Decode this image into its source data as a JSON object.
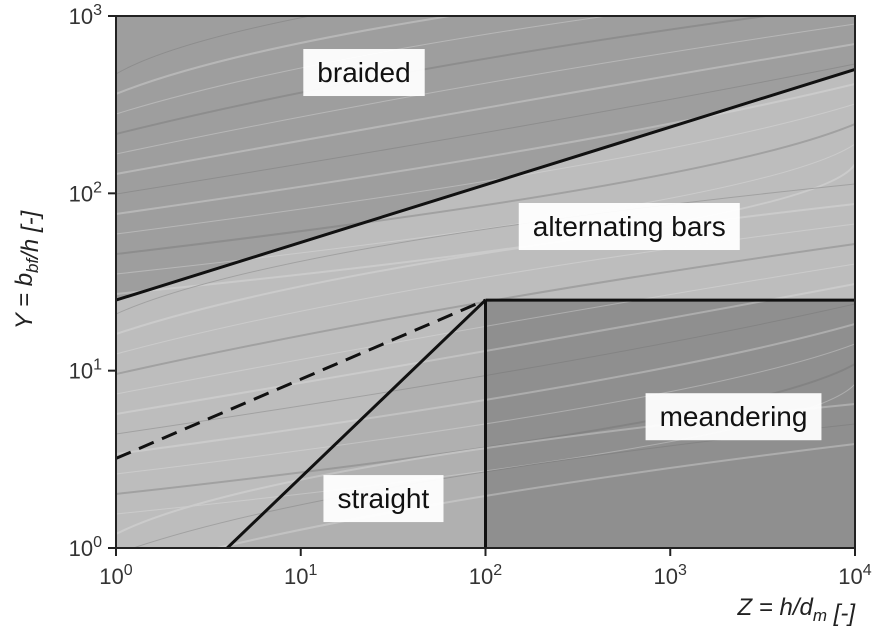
{
  "chart_data": {
    "type": "scatter",
    "title": "",
    "xlabel": "Z = h/d_m [-]",
    "ylabel": "Y = b_bf/h [-]",
    "xscale": "log",
    "yscale": "log",
    "xlim": [
      1,
      10000
    ],
    "ylim": [
      1,
      1000
    ],
    "x_ticks": [
      {
        "value": 1,
        "label": "10^0"
      },
      {
        "value": 10,
        "label": "10^1"
      },
      {
        "value": 100,
        "label": "10^2"
      },
      {
        "value": 1000,
        "label": "10^3"
      },
      {
        "value": 10000,
        "label": "10^4"
      }
    ],
    "y_ticks": [
      {
        "value": 1,
        "label": "10^0"
      },
      {
        "value": 10,
        "label": "10^1"
      },
      {
        "value": 100,
        "label": "10^2"
      },
      {
        "value": 1000,
        "label": "10^3"
      }
    ],
    "grid": false,
    "boundaries": [
      {
        "id": "braided-alternating",
        "style": "solid",
        "points": [
          [
            1,
            25
          ],
          [
            10000,
            500
          ]
        ]
      },
      {
        "id": "alternating-meandering",
        "style": "solid",
        "points": [
          [
            100,
            25
          ],
          [
            10000,
            25
          ]
        ]
      },
      {
        "id": "meandering-straight",
        "style": "solid",
        "points": [
          [
            100,
            1
          ],
          [
            100,
            25
          ]
        ]
      },
      {
        "id": "straight-alternating",
        "style": "solid",
        "points": [
          [
            4,
            1
          ],
          [
            100,
            25
          ]
        ]
      },
      {
        "id": "dashed-divider",
        "style": "dashed",
        "points": [
          [
            1,
            3.2
          ],
          [
            100,
            25
          ]
        ]
      }
    ],
    "regions": [
      {
        "label": "braided",
        "x": 22,
        "y": 480,
        "fill": "#9e9e9e"
      },
      {
        "label": "alternating bars",
        "x": 600,
        "y": 65,
        "fill": "#bdbdbd"
      },
      {
        "label": "meandering",
        "x": 2200,
        "y": 5.5,
        "fill": "#8f8f8f"
      },
      {
        "label": "straight",
        "x": 28,
        "y": 1.9,
        "fill": "#b0b0b0"
      }
    ],
    "colors": {
      "axis": "#222222",
      "boundary": "#111111",
      "label_box": "#ffffff"
    }
  }
}
